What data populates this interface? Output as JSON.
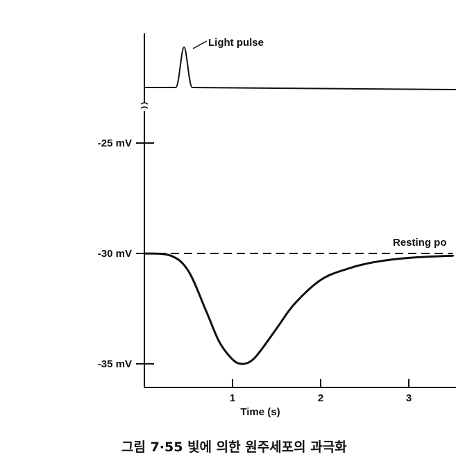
{
  "chart_data": {
    "type": "line",
    "xlabel": "Time (s)",
    "x_ticks": [
      1,
      2,
      3
    ],
    "y_ticks": [
      {
        "value": -25,
        "label": "-25 mV"
      },
      {
        "value": -30,
        "label": "-30 mV"
      },
      {
        "value": -35,
        "label": "-35 mV"
      }
    ],
    "xlim": [
      0,
      3.5
    ],
    "ylim": [
      -36,
      -24
    ],
    "grid": false,
    "series": [
      {
        "name": "",
        "style": "solid",
        "x": [
          0,
          0.3,
          0.5,
          0.7,
          0.85,
          1.0,
          1.1,
          1.2,
          1.3,
          1.5,
          1.7,
          2.0,
          2.3,
          2.6,
          3.0,
          3.5
        ],
        "y": [
          -30,
          -30.1,
          -30.8,
          -32.6,
          -34.0,
          -34.8,
          -35.0,
          -34.9,
          -34.5,
          -33.4,
          -32.3,
          -31.2,
          -30.7,
          -30.4,
          -30.2,
          -30.1
        ]
      },
      {
        "name": "Resting potential",
        "style": "dashed",
        "x": [
          0,
          3.5
        ],
        "y": [
          -30,
          -30
        ]
      }
    ],
    "stimulus_trace": {
      "label": "Light pulse",
      "pulse_time": 0.45
    },
    "annotations": [
      {
        "text": "Light pulse"
      },
      {
        "text": "Resting po"
      }
    ]
  },
  "caption": "그림 7·55 빛에 의한 원주세포의 과극화"
}
